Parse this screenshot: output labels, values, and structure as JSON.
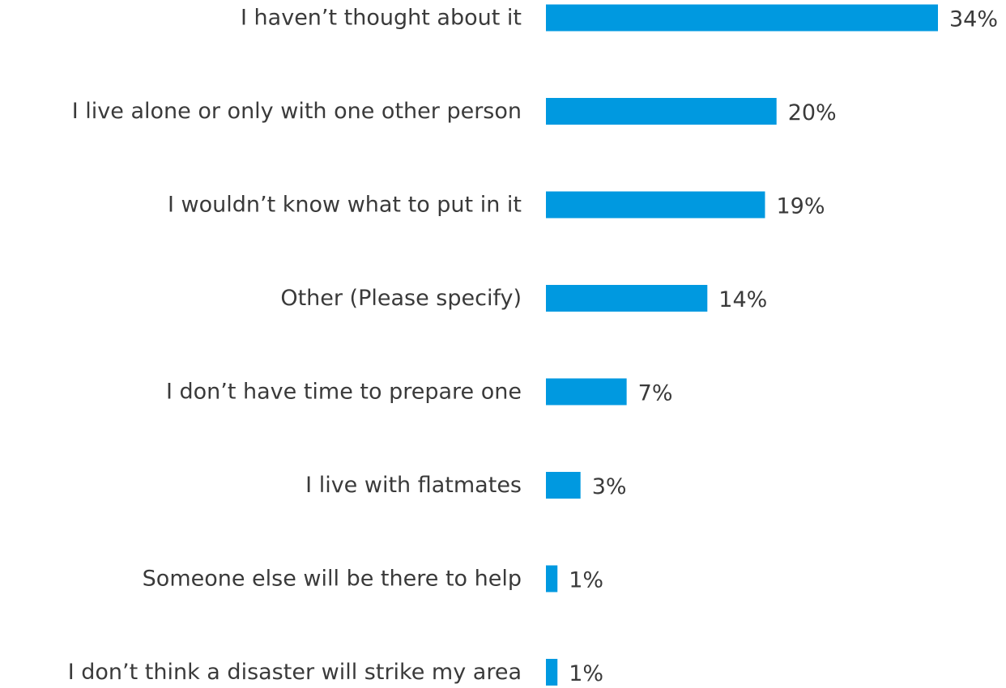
{
  "chart_data": {
    "type": "bar",
    "orientation": "horizontal",
    "categories": [
      "I haven’t thought about it",
      "I live alone or only with one other person",
      "I wouldn’t know what to put in it",
      "Other (Please specify)",
      "I don’t have time to prepare one",
      "I live with flatmates",
      "Someone else will be there to help",
      "I don’t think a disaster will strike my area"
    ],
    "values": [
      34,
      20,
      19,
      14,
      7,
      3,
      1,
      1
    ],
    "value_labels": [
      "34%",
      "20%",
      "19%",
      "14%",
      "7%",
      "3%",
      "1%",
      "1%"
    ],
    "unit": "%",
    "xlim": [
      0,
      34
    ],
    "grid": false,
    "legend": "none",
    "bar_color": "#0099e0",
    "text_color": "#3a3a3a"
  }
}
